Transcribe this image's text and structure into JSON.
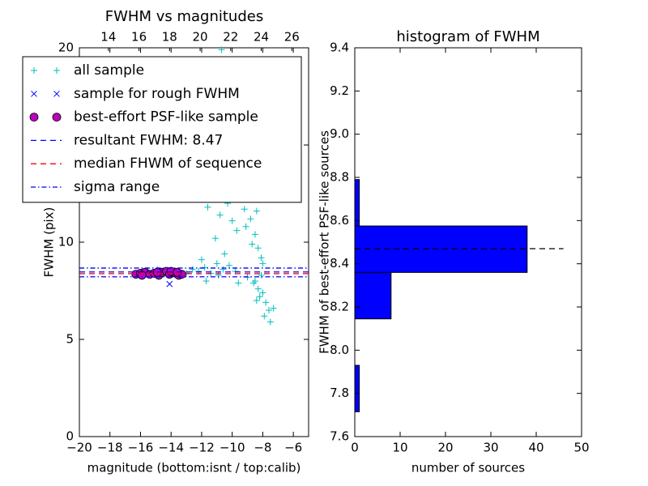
{
  "chart_data": [
    {
      "type": "scatter",
      "title": "FWHM vs magnitudes",
      "xlabel": "magnitude (bottom:isnt / top:calib)",
      "ylabel": "FWHM (pix)",
      "xlim": [
        -20,
        -5
      ],
      "xticks": [
        {
          "value": -20,
          "label": "−20"
        },
        {
          "value": -18,
          "label": "−18"
        },
        {
          "value": -16,
          "label": "−16"
        },
        {
          "value": -14,
          "label": "−14"
        },
        {
          "value": -12,
          "label": "−12"
        },
        {
          "value": -10,
          "label": "−10"
        },
        {
          "value": -8,
          "label": "−8"
        },
        {
          "value": -6,
          "label": "−6"
        }
      ],
      "x2lim": [
        12.1,
        27.1
      ],
      "x2ticks": [
        14,
        16,
        18,
        20,
        22,
        24,
        26
      ],
      "ylim": [
        0,
        20
      ],
      "yticks": [
        0,
        5,
        10,
        15,
        20
      ],
      "series": [
        {
          "name": "all sample",
          "color": "#00bfbf",
          "marker": "+",
          "x": [
            -16.2,
            -15.8,
            -15.3,
            -14.9,
            -14.4,
            -13.9,
            -13.5,
            -13.0,
            -12.6,
            -12.2,
            -11.8,
            -11.4,
            -11.0,
            -10.6,
            -10.2,
            -9.8,
            -12.0,
            -11.1,
            -10.5,
            -11.6,
            -11.2,
            -10.8,
            -10.3,
            -10.0,
            -9.7,
            -10.7,
            -9.3,
            -9.0,
            -9.5,
            -8.9,
            -8.6,
            -8.4,
            -8.2,
            -8.8,
            -8.5,
            -8.3,
            -8.1,
            -8.0,
            -8.7,
            -9.1,
            -8.4,
            -8.2,
            -8.0,
            -8.6,
            -9.2,
            -8.3,
            -8.1,
            -8.5,
            -8.3,
            -8.2,
            -8.6,
            -8.0,
            -7.8,
            -7.6,
            -7.9,
            -7.5,
            -8.4,
            -7.3,
            -8.1,
            -9.6,
            -9.0,
            -10.9,
            -11.7
          ],
          "y": [
            8.4,
            8.5,
            8.3,
            8.6,
            8.4,
            8.5,
            8.3,
            8.4,
            8.6,
            8.5,
            8.7,
            8.4,
            8.9,
            8.6,
            8.8,
            8.5,
            9.1,
            10.2,
            9.4,
            11.8,
            12.3,
            11.4,
            12.0,
            11.1,
            10.6,
            19.9,
            13.5,
            12.6,
            14.6,
            15.8,
            17.2,
            13.9,
            12.4,
            11.2,
            10.4,
            9.7,
            9.2,
            8.9,
            9.9,
            10.8,
            11.6,
            15.1,
            13.2,
            14.3,
            11.7,
            18.4,
            16.3,
            8.0,
            7.6,
            7.2,
            7.9,
            7.4,
            6.9,
            6.5,
            6.2,
            5.9,
            7.0,
            6.6,
            8.3,
            7.9,
            8.2,
            8.3,
            8.0
          ]
        },
        {
          "name": "sample for rough FWHM",
          "color": "#0000ff",
          "marker": "x",
          "x": [
            -14.1,
            -15.0,
            -13.8
          ],
          "y": [
            7.85,
            8.4,
            8.45
          ]
        },
        {
          "name": "best-effort PSF-like sample",
          "color": "#bf00bf",
          "marker": "o",
          "x": [
            -16.3,
            -16.0,
            -15.7,
            -15.4,
            -15.1,
            -14.8,
            -14.6,
            -14.3,
            -14.1,
            -13.9,
            -13.7,
            -13.5,
            -13.3,
            -14.9,
            -15.9,
            -14.0,
            -13.6
          ],
          "y": [
            8.35,
            8.4,
            8.45,
            8.35,
            8.4,
            8.3,
            8.45,
            8.5,
            8.35,
            8.45,
            8.4,
            8.3,
            8.35,
            8.45,
            8.3,
            8.5,
            8.45
          ]
        },
        {
          "name": "resultant FWHM: 8.47",
          "color": "#0000ff",
          "style": "dashed",
          "values": [
            8.47
          ]
        },
        {
          "name": "median FHWM of sequence",
          "color": "#ff0000",
          "style": "dashed",
          "values": [
            8.38
          ]
        },
        {
          "name": "sigma range",
          "color": "#0000ff",
          "style": "dashdot",
          "values": [
            8.67,
            8.22
          ]
        }
      ]
    },
    {
      "type": "histogram",
      "title": "histogram of FWHM",
      "xlabel": "number of sources",
      "ylabel": "FWHM of best-effort PSF-like sources",
      "orientation": "horizontal",
      "bins": [
        7.715,
        7.93,
        8.145,
        8.36,
        8.575,
        8.79
      ],
      "counts": [
        1,
        0,
        8,
        38,
        1
      ],
      "color": "#0000ff",
      "xlim": [
        0,
        50
      ],
      "xticks": [
        0,
        10,
        20,
        30,
        40,
        50
      ],
      "ylim": [
        7.6,
        9.4
      ],
      "yticks": [
        7.6,
        7.8,
        {
          "value": 8.0,
          "label": "8.0"
        },
        8.2,
        8.4,
        8.6,
        8.8,
        {
          "value": 9.0,
          "label": "9.0"
        },
        9.2,
        9.4
      ],
      "reference_line": {
        "value": 8.47,
        "extent": 46,
        "color": "#000000"
      }
    }
  ]
}
